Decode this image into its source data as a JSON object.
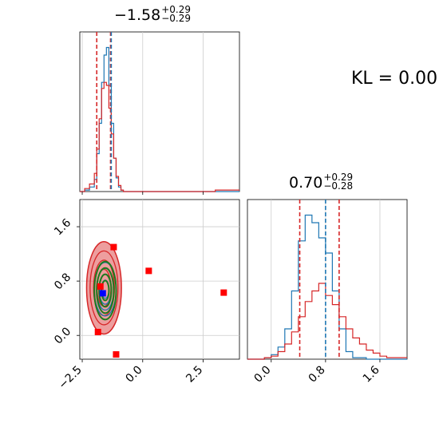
{
  "annotation": {
    "kl_text": "KL = 0.00"
  },
  "panel_titles": {
    "param1": {
      "value": "−1.58",
      "upper": "+0.29",
      "lower": "−0.29"
    },
    "param2": {
      "value": "0.70",
      "upper": "+0.29",
      "lower": "−0.28"
    }
  },
  "colors": {
    "blue": "#1f77b4",
    "red": "#d62728",
    "dark_red": "#a01f1f",
    "green": "#1f7a1f",
    "grid": "#cccccc",
    "marker_red": "#ff0000",
    "marker_blue": "#0000ff"
  },
  "chart_data": [
    {
      "type": "histogram",
      "panel": "param1-marginal",
      "xlim": [
        -2.6,
        4.0
      ],
      "xticks": [
        -2.5,
        0.0,
        2.5
      ],
      "grid": true,
      "series": [
        {
          "color": "blue",
          "x": [
            -2.6,
            -2.4,
            -2.2,
            -2.0,
            -1.9,
            -1.8,
            -1.7,
            -1.6,
            -1.5,
            -1.4,
            -1.3,
            -1.2,
            -1.1,
            -1.0,
            -0.9,
            -0.8,
            -0.6,
            -0.3,
            0.0,
            1.0,
            2.0,
            3.0,
            4.0
          ],
          "values": [
            0,
            0.01,
            0.03,
            0.08,
            0.25,
            0.45,
            0.72,
            0.9,
            0.95,
            0.7,
            0.45,
            0.22,
            0.09,
            0.03,
            0.01,
            0,
            0,
            0,
            0,
            0,
            0,
            0,
            0
          ]
        },
        {
          "color": "red",
          "x": [
            -2.6,
            -2.4,
            -2.2,
            -2.0,
            -1.9,
            -1.8,
            -1.7,
            -1.6,
            -1.5,
            -1.4,
            -1.3,
            -1.2,
            -1.1,
            -1.0,
            -0.9,
            -0.8,
            -0.6,
            -0.3,
            0.0,
            1.0,
            2.0,
            3.0,
            4.0
          ],
          "values": [
            0,
            0.02,
            0.05,
            0.12,
            0.28,
            0.48,
            0.68,
            0.72,
            0.7,
            0.55,
            0.38,
            0.22,
            0.1,
            0.04,
            0.01,
            0,
            0,
            0,
            0,
            0,
            0,
            0.01,
            0
          ]
        }
      ],
      "quantile_lines": {
        "red": [
          -1.9,
          -1.33
        ],
        "blue": [
          -1.3
        ]
      }
    },
    {
      "type": "scatter",
      "panel": "param1-vs-param2",
      "xlim": [
        -2.6,
        4.0
      ],
      "ylim": [
        -0.35,
        2.0
      ],
      "xticks": [
        -2.5,
        0.0,
        2.5
      ],
      "yticks": [
        0.0,
        0.8,
        1.6
      ],
      "grid": true,
      "red_markers": [
        {
          "x": -1.2,
          "y": 1.3
        },
        {
          "x": 0.25,
          "y": 0.95
        },
        {
          "x": 3.35,
          "y": 0.63
        },
        {
          "x": -1.75,
          "y": 0.72
        },
        {
          "x": -1.85,
          "y": 0.05
        },
        {
          "x": -1.1,
          "y": -0.28
        }
      ],
      "blue_markers": [
        {
          "x": -1.65,
          "y": 0.62
        }
      ],
      "contours": [
        {
          "color": "red",
          "cx": -1.6,
          "cy": 0.7,
          "rx": 0.72,
          "ry": 0.68
        },
        {
          "color": "blue",
          "cx": -1.55,
          "cy": 0.68,
          "rx": 0.55,
          "ry": 0.48
        },
        {
          "color": "green",
          "cx": -1.55,
          "cy": 0.66,
          "rx": 0.55,
          "ry": 0.52
        }
      ]
    },
    {
      "type": "histogram",
      "panel": "param2-marginal",
      "xlim": [
        -0.35,
        2.0
      ],
      "xticks": [
        0.0,
        0.8,
        1.6
      ],
      "grid": true,
      "series": [
        {
          "color": "blue",
          "x": [
            -0.35,
            -0.1,
            0.0,
            0.1,
            0.2,
            0.3,
            0.4,
            0.5,
            0.6,
            0.7,
            0.8,
            0.9,
            1.0,
            1.1,
            1.2,
            1.4,
            2.0
          ],
          "values": [
            0,
            0.01,
            0.03,
            0.08,
            0.2,
            0.45,
            0.78,
            0.95,
            0.9,
            0.8,
            0.7,
            0.45,
            0.2,
            0.05,
            0.01,
            0,
            0
          ]
        },
        {
          "color": "red",
          "x": [
            -0.35,
            -0.1,
            0.0,
            0.1,
            0.2,
            0.3,
            0.4,
            0.5,
            0.6,
            0.7,
            0.8,
            0.9,
            1.0,
            1.1,
            1.2,
            1.3,
            1.4,
            1.5,
            1.6,
            1.7,
            2.0
          ],
          "values": [
            0,
            0.01,
            0.02,
            0.05,
            0.1,
            0.18,
            0.28,
            0.38,
            0.45,
            0.5,
            0.42,
            0.36,
            0.28,
            0.2,
            0.14,
            0.1,
            0.06,
            0.04,
            0.02,
            0.01,
            0
          ]
        }
      ],
      "quantile_lines": {
        "red": [
          0.42,
          1.0
        ],
        "blue": [
          0.8
        ]
      }
    }
  ]
}
